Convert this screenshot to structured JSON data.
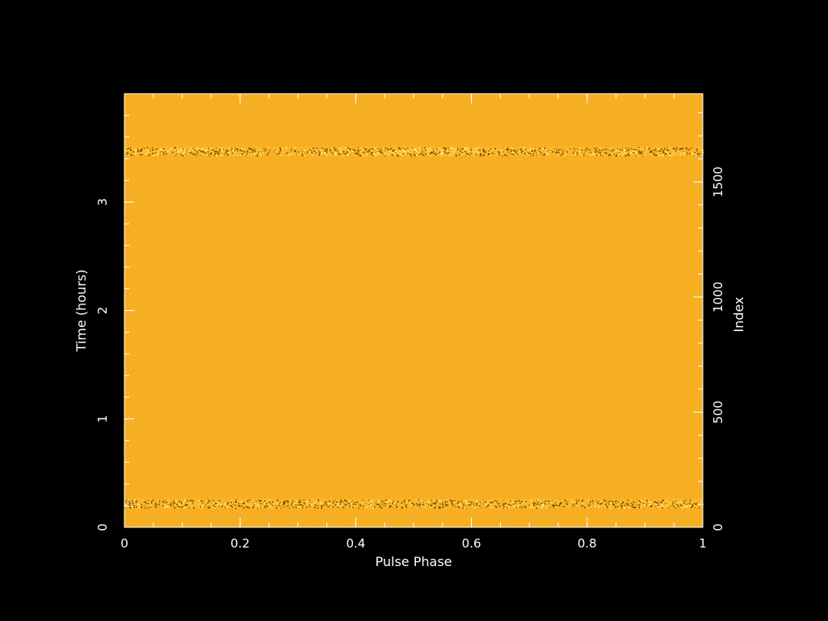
{
  "chart_data": {
    "type": "heatmap",
    "title": "",
    "xlabel": "Pulse Phase",
    "ylabel_left": "Time (hours)",
    "ylabel_right": "Index",
    "xlim": [
      0,
      1
    ],
    "ylim_left": [
      0,
      4
    ],
    "ylim_right": [
      0,
      1883
    ],
    "x_ticks": [
      0,
      0.2,
      0.4,
      0.6,
      0.8,
      1
    ],
    "x_tick_labels": [
      "0",
      "0.2",
      "0.4",
      "0.6",
      "0.8",
      "1"
    ],
    "y_left_ticks": [
      0,
      1,
      2,
      3
    ],
    "y_left_tick_labels": [
      "0",
      "1",
      "2",
      "3"
    ],
    "y_right_ticks": [
      0,
      500,
      1000,
      1500
    ],
    "y_right_tick_labels": [
      "0",
      "500",
      "1000",
      "1500"
    ],
    "background_color": "#000000",
    "fill_color": "#fdb323",
    "noisy_bands_hours": [
      0.22,
      3.47
    ],
    "grid": false
  }
}
